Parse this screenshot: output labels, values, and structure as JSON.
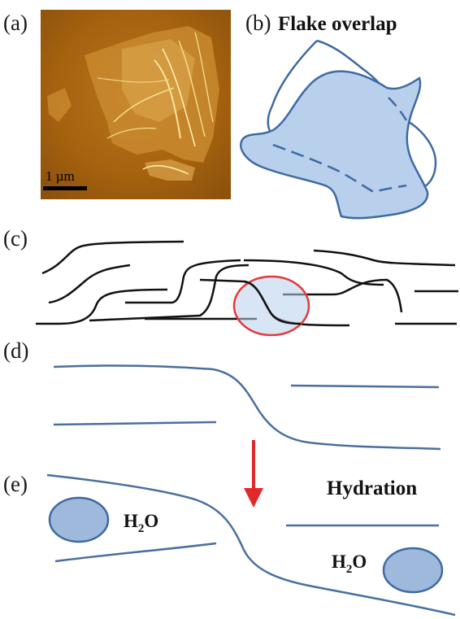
{
  "panels": {
    "a": {
      "label": "(a)",
      "scale_bar_label": "1 µm"
    },
    "b": {
      "label": "(b)",
      "title": "Flake overlap"
    },
    "c": {
      "label": "(c)"
    },
    "d": {
      "label": "(d)"
    },
    "e": {
      "label": "(e)",
      "title": "Hydration",
      "water_left": "H",
      "water_left_sub": "2",
      "water_left_end": "O",
      "water_right": "H",
      "water_right_sub": "2",
      "water_right_end": "O"
    }
  },
  "colors": {
    "flake_fill": "#b8d0ec",
    "flake_stroke": "#3f6aa3",
    "sheet_line": "#4a6f9e",
    "black_line": "#111111",
    "highlight_circle": "#e33b3b",
    "arrow": "#e02a2a",
    "water_fill": "#9fb9dc",
    "afm_base": "#b06a12"
  }
}
